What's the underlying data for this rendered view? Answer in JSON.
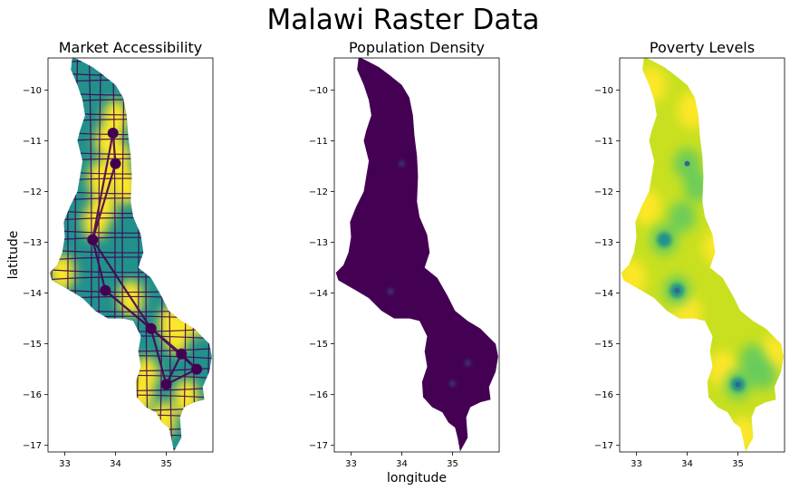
{
  "title": "Malawi Raster Data",
  "chart_data": [
    {
      "type": "heatmap",
      "title": "Market Accessibility",
      "xlabel": "",
      "ylabel": "latitude",
      "colormap": "viridis",
      "xlim": [
        32.67,
        35.92
      ],
      "ylim": [
        -17.13,
        -9.37
      ],
      "xticks": [
        "33",
        "34",
        "35"
      ],
      "yticks": [
        "−10",
        "−11",
        "−12",
        "−13",
        "−14",
        "−15",
        "−16",
        "−17"
      ],
      "bright_zones": [
        [
          34.0,
          -10.55
        ],
        [
          33.85,
          -11.0
        ],
        [
          34.05,
          -11.35
        ],
        [
          33.7,
          -11.75
        ],
        [
          33.75,
          -12.3
        ],
        [
          33.6,
          -12.6
        ],
        [
          32.95,
          -13.6
        ],
        [
          34.3,
          -14.1
        ],
        [
          35.1,
          -14.6
        ],
        [
          35.2,
          -14.85
        ],
        [
          34.6,
          -15.6
        ],
        [
          34.5,
          -16.0
        ],
        [
          34.95,
          -16.5
        ],
        [
          35.4,
          -16.05
        ],
        [
          35.6,
          -14.5
        ],
        [
          34.2,
          -11.9
        ]
      ],
      "dark_hubs": [
        [
          33.8,
          -13.95
        ],
        [
          35.0,
          -15.8
        ],
        [
          34.0,
          -11.45
        ],
        [
          33.55,
          -12.95
        ],
        [
          35.3,
          -15.2
        ],
        [
          34.7,
          -14.7
        ],
        [
          35.6,
          -15.5
        ],
        [
          33.95,
          -10.85
        ]
      ]
    },
    {
      "type": "heatmap",
      "title": "Population Density",
      "xlabel": "longitude",
      "ylabel": "",
      "colormap": "viridis",
      "xlim": [
        32.67,
        35.92
      ],
      "ylim": [
        -17.13,
        -9.37
      ],
      "xticks": [
        "33",
        "34",
        "35"
      ],
      "yticks": [
        "−10",
        "−11",
        "−12",
        "−13",
        "−14",
        "−15",
        "−16",
        "−17"
      ],
      "hot_spots": [
        [
          33.78,
          -13.97
        ],
        [
          35.0,
          -15.78
        ],
        [
          34.0,
          -11.45
        ],
        [
          35.3,
          -15.38
        ]
      ]
    },
    {
      "type": "heatmap",
      "title": "Poverty Levels",
      "xlabel": "",
      "ylabel": "",
      "colormap": "viridis",
      "xlim": [
        32.67,
        35.92
      ],
      "ylim": [
        -17.13,
        -9.37
      ],
      "xticks": [
        "33",
        "34",
        "35"
      ],
      "yticks": [
        "−10",
        "−11",
        "−12",
        "−13",
        "−14",
        "−15",
        "−16",
        "−17"
      ],
      "low_zones": [
        [
          33.55,
          -12.95
        ],
        [
          33.8,
          -13.95
        ],
        [
          35.0,
          -15.8
        ],
        [
          34.0,
          -11.45
        ],
        [
          35.3,
          -15.3
        ],
        [
          33.9,
          -12.5
        ],
        [
          34.2,
          -11.9
        ],
        [
          35.5,
          -15.6
        ]
      ],
      "core_hubs": [
        [
          34.0,
          -11.45
        ],
        [
          33.8,
          -13.95
        ],
        [
          35.0,
          -15.8
        ]
      ]
    }
  ],
  "colors": {
    "viridis_dark": "#440154",
    "viridis_mid": "#21918c",
    "viridis_bright": "#fde725"
  }
}
